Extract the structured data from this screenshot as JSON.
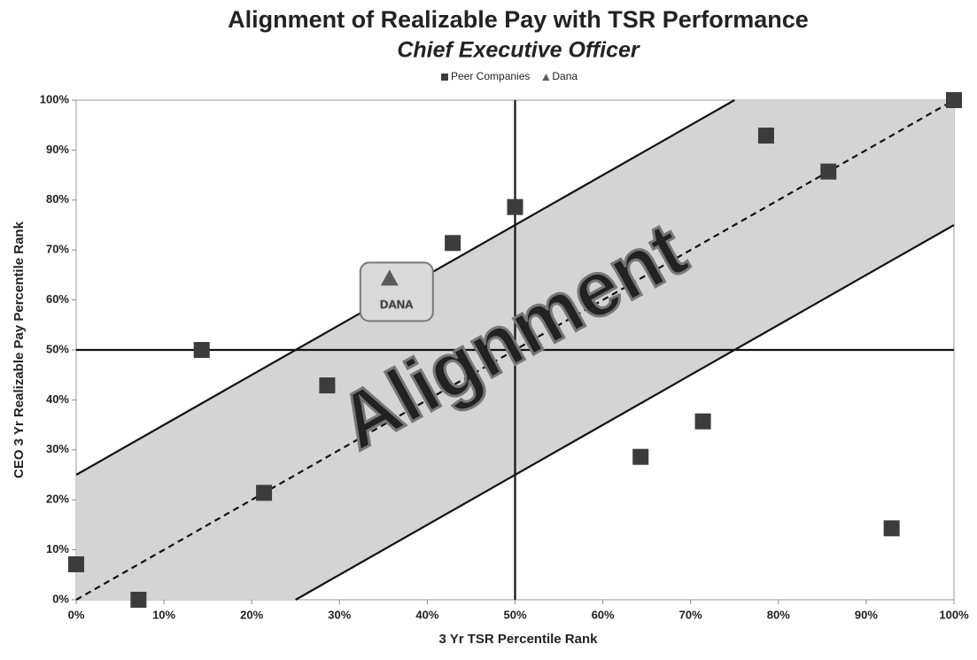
{
  "chart_data": {
    "type": "scatter",
    "title": "Alignment of Realizable Pay with TSR Performance",
    "subtitle": "Chief Executive Officer",
    "x_label": "3 Yr TSR Percentile Rank",
    "y_label": "CEO 3 Yr Realizable Pay Percentile Rank",
    "xlim": [
      0,
      100
    ],
    "ylim": [
      0,
      100
    ],
    "xticks": [
      {
        "value": 0,
        "label": "0%"
      },
      {
        "value": 10,
        "label": "10%"
      },
      {
        "value": 20,
        "label": "20%"
      },
      {
        "value": 30,
        "label": "30%"
      },
      {
        "value": 40,
        "label": "40%"
      },
      {
        "value": 50,
        "label": "50%"
      },
      {
        "value": 60,
        "label": "60%"
      },
      {
        "value": 70,
        "label": "70%"
      },
      {
        "value": 80,
        "label": "80%"
      },
      {
        "value": 90,
        "label": "90%"
      },
      {
        "value": 100,
        "label": "100%"
      }
    ],
    "yticks": [
      {
        "value": 0,
        "label": "0%"
      },
      {
        "value": 10,
        "label": "10%"
      },
      {
        "value": 20,
        "label": "20%"
      },
      {
        "value": 30,
        "label": "30%"
      },
      {
        "value": 40,
        "label": "40%"
      },
      {
        "value": 50,
        "label": "50%"
      },
      {
        "value": 60,
        "label": "60%"
      },
      {
        "value": 70,
        "label": "70%"
      },
      {
        "value": 80,
        "label": "80%"
      },
      {
        "value": 90,
        "label": "90%"
      },
      {
        "value": 100,
        "label": "100%"
      }
    ],
    "legend": "top",
    "series": [
      {
        "name": "Peer Companies",
        "color": "#3c3c3c",
        "marker": "square",
        "x": [
          0,
          7.1,
          14.3,
          21.4,
          28.6,
          42.9,
          50,
          64.3,
          71.4,
          78.6,
          85.7,
          92.9,
          100
        ],
        "values": [
          7.1,
          0,
          50,
          21.4,
          42.9,
          71.4,
          78.6,
          28.6,
          35.7,
          92.9,
          85.7,
          14.3,
          100
        ]
      },
      {
        "name": "Dana",
        "color": "#5a5a5a",
        "marker": "triangle",
        "x": [
          35.7
        ],
        "values": [
          64.3
        ]
      }
    ],
    "point_label": "DANA",
    "band_label": "Alignment",
    "lines": [
      {
        "style": "solid",
        "x": [
          0,
          75
        ],
        "y": [
          25,
          100
        ]
      },
      {
        "style": "solid",
        "x": [
          25,
          100
        ],
        "y": [
          0,
          75
        ]
      },
      {
        "style": "dashed",
        "x": [
          0,
          100
        ],
        "y": [
          0,
          100
        ]
      },
      {
        "style": "solid",
        "x": [
          50,
          50
        ],
        "y": [
          0,
          100
        ]
      },
      {
        "style": "solid",
        "x": [
          0,
          100
        ],
        "y": [
          50,
          50
        ]
      }
    ]
  }
}
